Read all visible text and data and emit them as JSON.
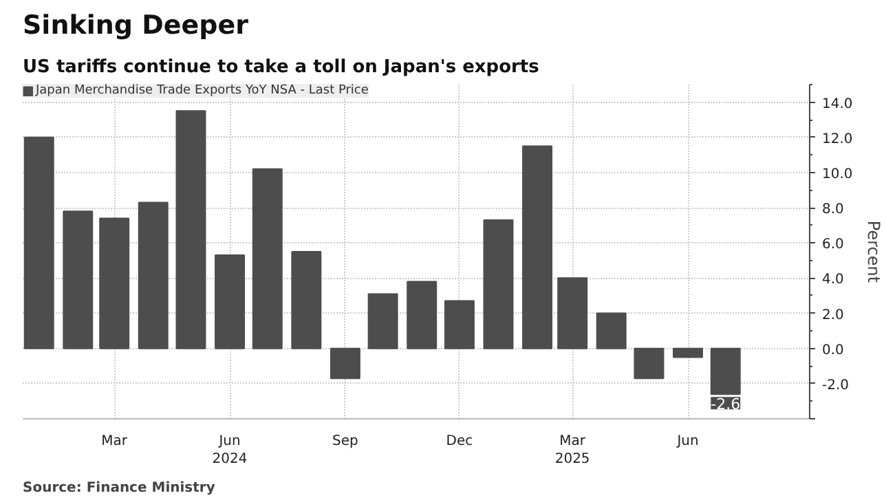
{
  "chart_data": {
    "type": "bar",
    "title": "Sinking Deeper",
    "subtitle": "US tariffs continue to take a toll on Japan's exports",
    "ylabel": "Percent",
    "x": [
      "2024-01",
      "2024-02",
      "2024-03",
      "2024-04",
      "2024-05",
      "2024-06",
      "2024-07",
      "2024-08",
      "2024-09",
      "2024-10",
      "2024-11",
      "2024-12",
      "2025-01",
      "2025-02",
      "2025-03",
      "2025-04",
      "2025-05",
      "2025-06",
      "2025-07"
    ],
    "series": [
      {
        "name": "Japan Merchandise Trade Exports YoY NSA - Last Price",
        "color": "#4d4d4d",
        "values": [
          12.0,
          7.8,
          7.4,
          8.3,
          13.5,
          5.3,
          10.2,
          5.5,
          -1.7,
          3.1,
          3.8,
          2.7,
          7.3,
          11.5,
          4.0,
          2.0,
          -1.7,
          -0.5,
          -2.6
        ],
        "value_labels": [
          null,
          null,
          null,
          null,
          null,
          null,
          null,
          null,
          null,
          null,
          null,
          null,
          null,
          null,
          null,
          null,
          null,
          null,
          "-2.6"
        ]
      }
    ],
    "xlim": [
      "2023-12-19",
      "2025-09-06"
    ],
    "xticks": [
      {
        "value": "2024-03",
        "label": "Mar"
      },
      {
        "value": "2024-06",
        "label": "Jun\n2024"
      },
      {
        "value": "2024-09",
        "label": "Sep"
      },
      {
        "value": "2024-12",
        "label": "Dec"
      },
      {
        "value": "2025-03",
        "label": "Mar\n2025"
      },
      {
        "value": "2025-06",
        "label": "Jun"
      }
    ],
    "ylim": [
      -4.0,
      15.0
    ],
    "yticks": [
      {
        "value": -4,
        "label": null
      },
      {
        "value": -2,
        "label": "-2.0"
      },
      {
        "value": 0,
        "label": "0.0"
      },
      {
        "value": 2,
        "label": "2.0"
      },
      {
        "value": 4,
        "label": "4.0"
      },
      {
        "value": 6,
        "label": "6.0"
      },
      {
        "value": 8,
        "label": "8.0"
      },
      {
        "value": 10,
        "label": "10.0"
      },
      {
        "value": 12,
        "label": "12.0"
      },
      {
        "value": 14,
        "label": "14.0"
      }
    ],
    "grid": true,
    "legend": "top left",
    "annotations": [
      "Source: Finance Ministry"
    ]
  }
}
